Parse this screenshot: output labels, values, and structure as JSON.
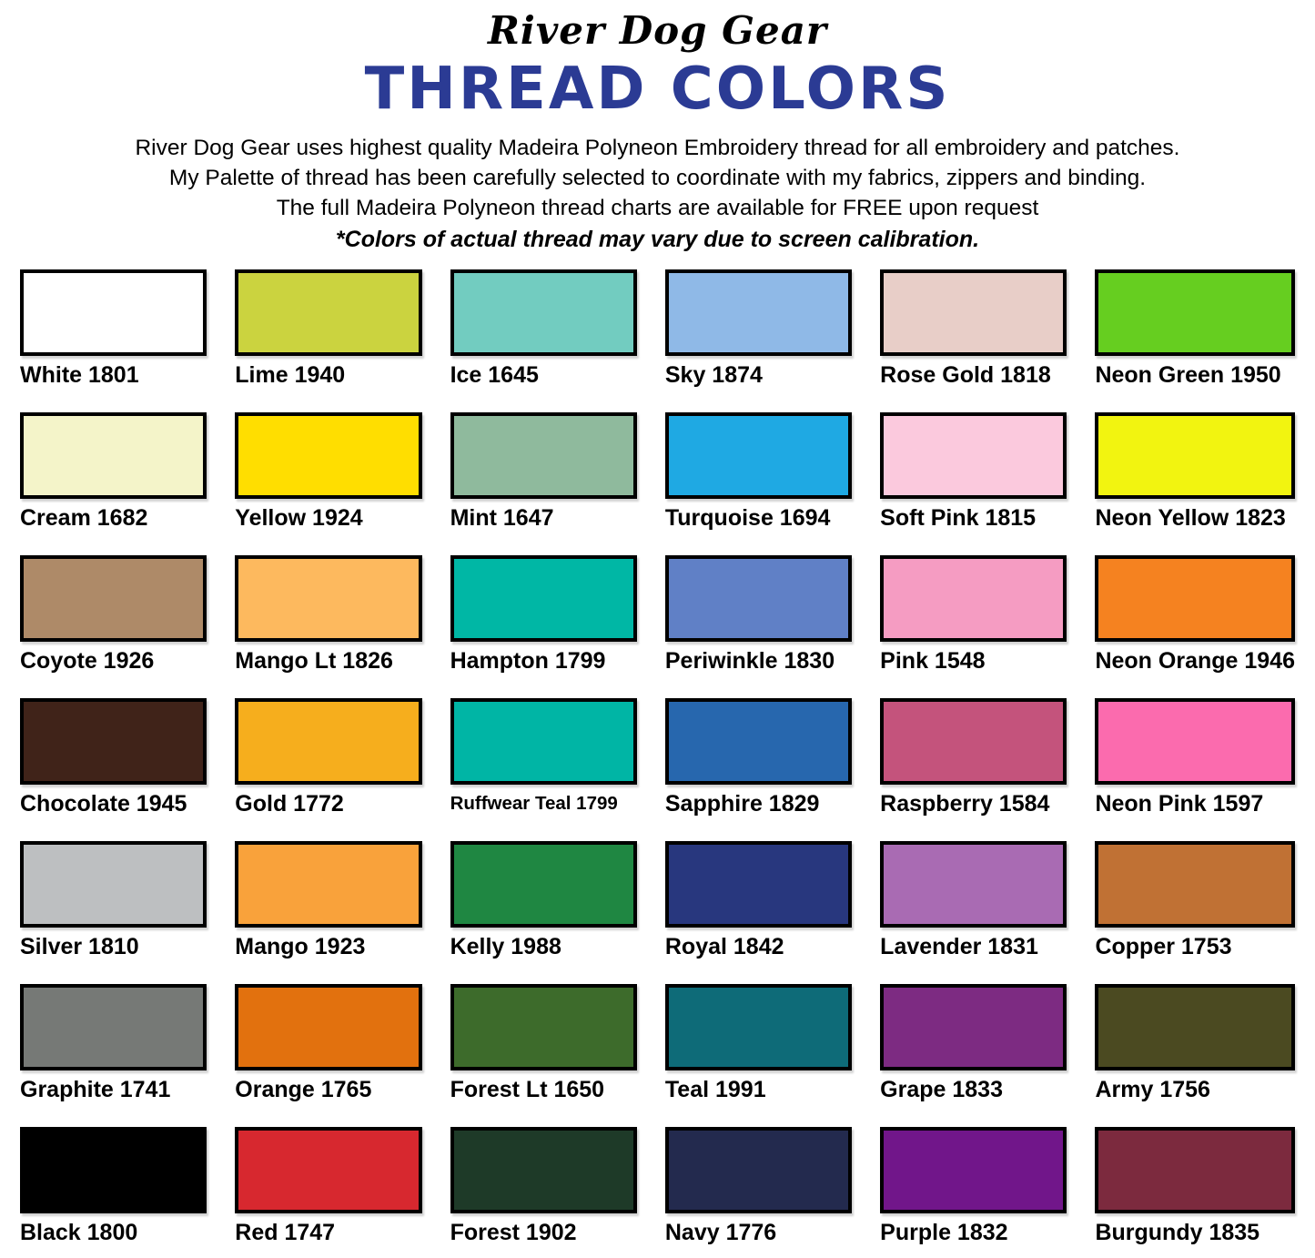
{
  "header": {
    "brand": "River Dog Gear",
    "title": "THREAD COLORS",
    "title_color": "#2B3B94",
    "intro_lines": [
      "River Dog Gear uses highest quality Madeira Polyneon Embroidery thread for all embroidery and patches.",
      "My Palette of thread has been carefully selected to coordinate with my fabrics, zippers and binding.",
      "The full Madeira Polyneon thread charts are available for FREE upon request"
    ],
    "disclaimer": "*Colors of actual thread may vary due to screen calibration."
  },
  "swatches": [
    {
      "name": "White 1801",
      "color": "#FFFFFF"
    },
    {
      "name": "Lime 1940",
      "color": "#CBD33F"
    },
    {
      "name": "Ice 1645",
      "color": "#72CCC0"
    },
    {
      "name": "Sky 1874",
      "color": "#8FB9E7"
    },
    {
      "name": "Rose Gold 1818",
      "color": "#E8CEC8"
    },
    {
      "name": "Neon Green 1950",
      "color": "#66CE20"
    },
    {
      "name": "Cream 1682",
      "color": "#F4F4C9"
    },
    {
      "name": "Yellow 1924",
      "color": "#FFDE00"
    },
    {
      "name": "Mint 1647",
      "color": "#8FBA9D"
    },
    {
      "name": "Turquoise 1694",
      "color": "#1FA9E3"
    },
    {
      "name": "Soft Pink 1815",
      "color": "#FBC9DD"
    },
    {
      "name": "Neon Yellow 1823",
      "color": "#F2F410"
    },
    {
      "name": "Coyote 1926",
      "color": "#AE8A68"
    },
    {
      "name": "Mango Lt 1826",
      "color": "#FDB95E"
    },
    {
      "name": "Hampton 1799",
      "color": "#00B7A5"
    },
    {
      "name": "Periwinkle 1830",
      "color": "#6080C6"
    },
    {
      "name": "Pink 1548",
      "color": "#F59CC2"
    },
    {
      "name": "Neon Orange 1946",
      "color": "#F58220"
    },
    {
      "name": "Chocolate 1945",
      "color": "#402319"
    },
    {
      "name": "Gold 1772",
      "color": "#F6AE1D"
    },
    {
      "name": "Ruffwear Teal 1799",
      "color": "#00B5A5"
    },
    {
      "name": "Sapphire 1829",
      "color": "#2767AE"
    },
    {
      "name": "Raspberry 1584",
      "color": "#C4537C"
    },
    {
      "name": "Neon Pink 1597",
      "color": "#FB6BAE"
    },
    {
      "name": "Silver 1810",
      "color": "#BDBFC1"
    },
    {
      "name": "Mango 1923",
      "color": "#F9A23B"
    },
    {
      "name": "Kelly 1988",
      "color": "#1F8742"
    },
    {
      "name": "Royal 1842",
      "color": "#28377E"
    },
    {
      "name": "Lavender 1831",
      "color": "#A96BB3"
    },
    {
      "name": "Copper 1753",
      "color": "#C07134"
    },
    {
      "name": "Graphite 1741",
      "color": "#767976"
    },
    {
      "name": "Orange 1765",
      "color": "#E2710E"
    },
    {
      "name": "Forest Lt 1650",
      "color": "#3D6B2B"
    },
    {
      "name": "Teal 1991",
      "color": "#0E6B78"
    },
    {
      "name": "Grape 1833",
      "color": "#7D2B82"
    },
    {
      "name": "Army 1756",
      "color": "#4B4A21"
    },
    {
      "name": "Black 1800",
      "color": "#000000"
    },
    {
      "name": "Red 1747",
      "color": "#D7282F"
    },
    {
      "name": "Forest 1902",
      "color": "#1E3A28"
    },
    {
      "name": "Navy 1776",
      "color": "#232A4E"
    },
    {
      "name": "Purple 1832",
      "color": "#71168A"
    },
    {
      "name": "Burgundy 1835",
      "color": "#7C2A3E"
    }
  ]
}
